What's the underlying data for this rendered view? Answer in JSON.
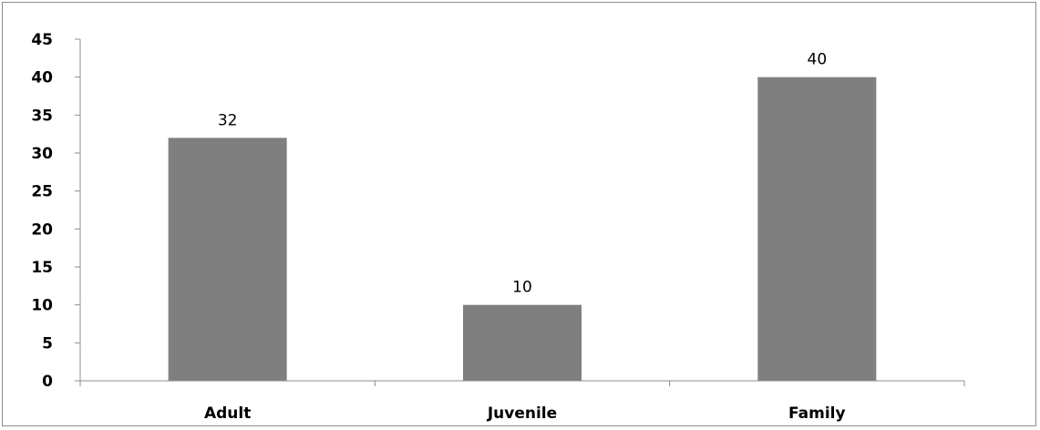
{
  "chart_data": {
    "type": "bar",
    "title": "",
    "xlabel": "",
    "ylabel": "",
    "categories": [
      "Adult",
      "Juvenile",
      "Family"
    ],
    "values": [
      32,
      10,
      40
    ],
    "ylim": [
      0,
      45
    ],
    "yticks": [
      0,
      5,
      10,
      15,
      20,
      25,
      30,
      35,
      40,
      45
    ],
    "grid": false,
    "legend": "none",
    "data_labels": true,
    "bar_color": "#7f7f7f",
    "axis_color": "#8c8c8c"
  }
}
